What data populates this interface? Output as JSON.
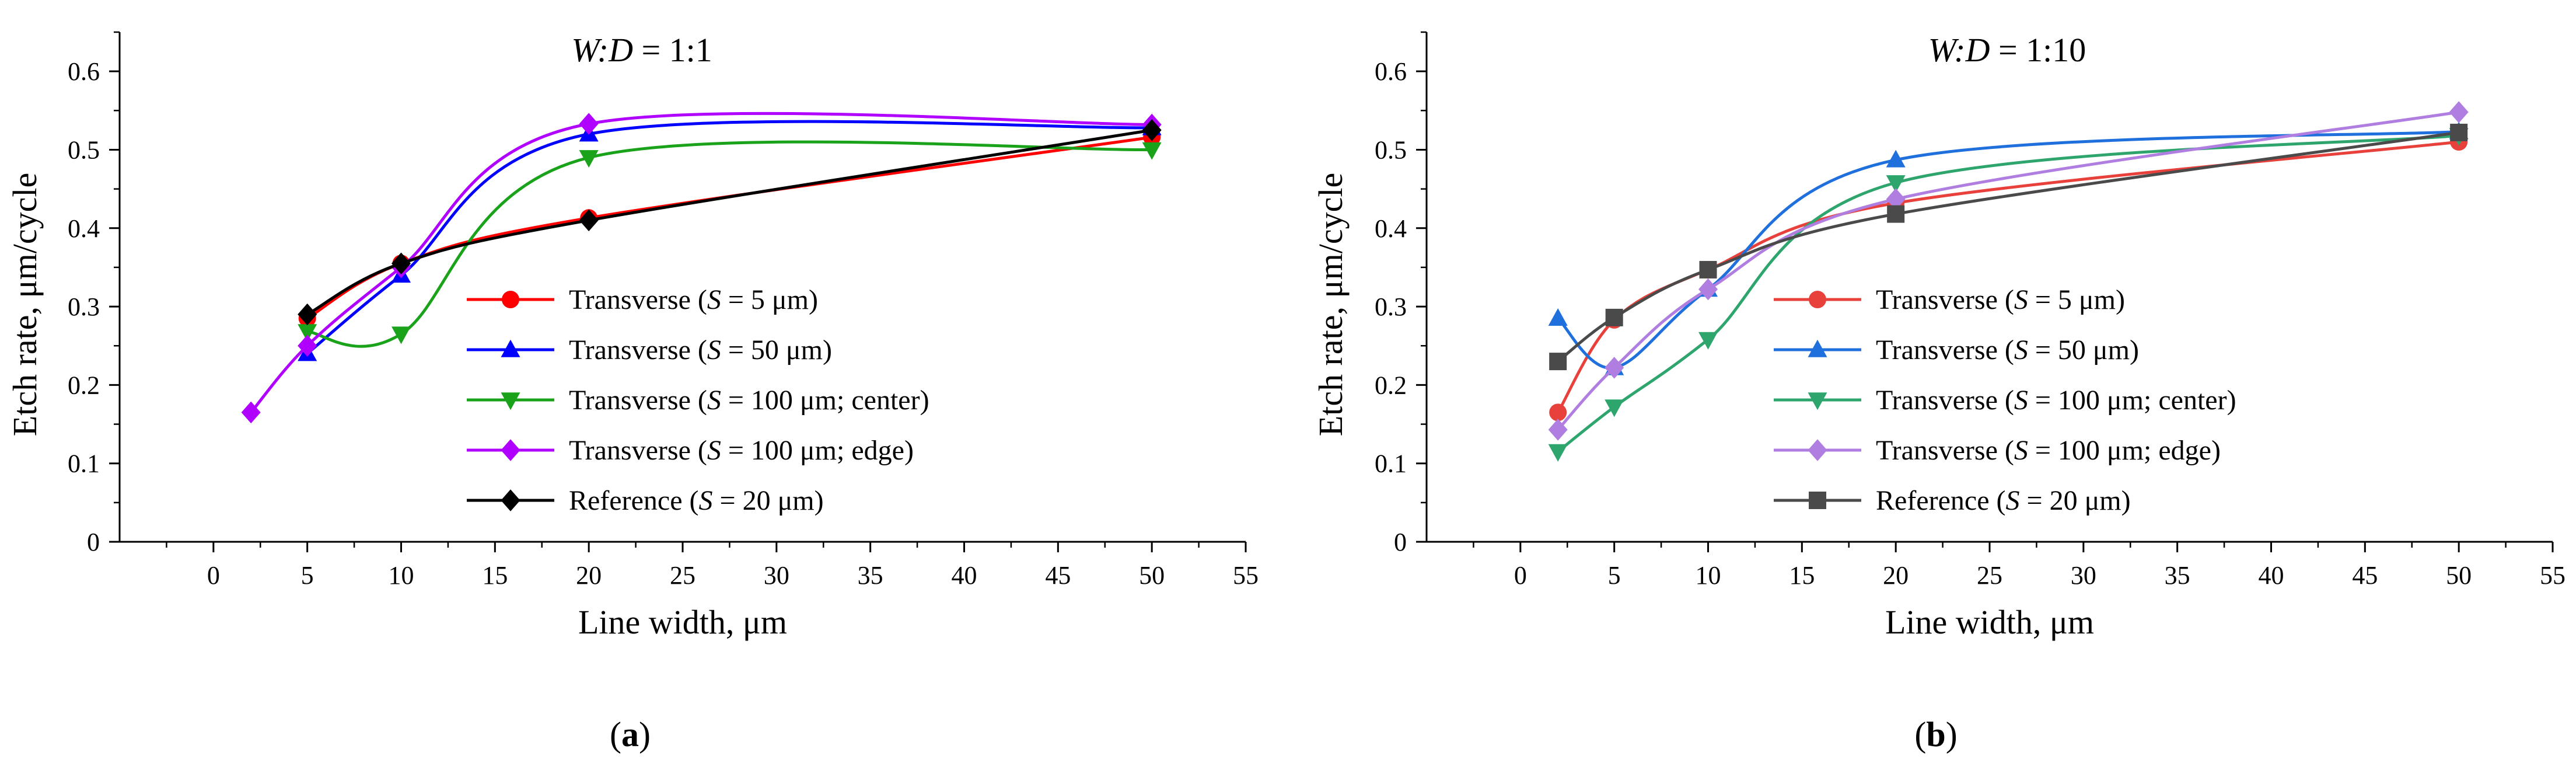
{
  "chart_data": [
    {
      "type": "line",
      "panel_label": "a",
      "title": "W:D = 1:1",
      "title_italic": "W:D",
      "title_rest": " = 1:1",
      "xlabel": "Line width, μm",
      "ylabel": "Etch rate, μm/cycle",
      "xlim": [
        -5,
        55
      ],
      "ylim": [
        0,
        0.65
      ],
      "xticks": [
        "0",
        "5",
        "10",
        "15",
        "20",
        "25",
        "30",
        "35",
        "40",
        "45",
        "50",
        "55"
      ],
      "yticks": [
        "0",
        "0.1",
        "0.2",
        "0.3",
        "0.4",
        "0.5",
        "0.6"
      ],
      "legend_position": "bottom-center",
      "series": [
        {
          "name": "Transverse (S = 5 μm)",
          "pre": "Transverse (",
          "s": "S",
          "post": " = 5 μm)",
          "color": "#ff0000",
          "marker": "circle",
          "x": [
            5,
            10,
            20,
            50
          ],
          "y": [
            0.285,
            0.355,
            0.413,
            0.516
          ]
        },
        {
          "name": "Transverse (S = 50 μm)",
          "pre": "Transverse (",
          "s": "S",
          "post": " = 50 μm)",
          "color": "#0000ff",
          "marker": "triangle-up",
          "x": [
            5,
            10,
            20,
            50
          ],
          "y": [
            0.24,
            0.34,
            0.52,
            0.528
          ]
        },
        {
          "name": "Transverse (S = 100 μm; center)",
          "pre": "Transverse (",
          "s": "S",
          "post": " = 100 μm; center)",
          "color": "#1aa31a",
          "marker": "triangle-down",
          "x": [
            5,
            10,
            20,
            50
          ],
          "y": [
            0.268,
            0.265,
            0.49,
            0.5
          ]
        },
        {
          "name": "Transverse (S = 100 μm; edge)",
          "pre": "Transverse (",
          "s": "S",
          "post": " = 100 μm; edge)",
          "color": "#b000ff",
          "marker": "diamond",
          "x": [
            2,
            5,
            10,
            20,
            50
          ],
          "y": [
            0.165,
            0.25,
            0.35,
            0.533,
            0.532
          ]
        },
        {
          "name": "Reference (S = 20 μm)",
          "pre": "Reference (",
          "s": "S",
          "post": " = 20 μm)",
          "color": "#000000",
          "marker": "diamond",
          "x": [
            5,
            10,
            20,
            50
          ],
          "y": [
            0.29,
            0.355,
            0.41,
            0.525
          ]
        }
      ]
    },
    {
      "type": "line",
      "panel_label": "b",
      "title": "W:D = 1:10",
      "title_italic": "W:D",
      "title_rest": " = 1:10",
      "xlabel": "Line width, μm",
      "ylabel": "Etch rate, μm/cycle",
      "xlim": [
        -5,
        55
      ],
      "ylim": [
        0,
        0.65
      ],
      "xticks": [
        "0",
        "5",
        "10",
        "15",
        "20",
        "25",
        "30",
        "35",
        "40",
        "45",
        "50",
        "55"
      ],
      "yticks": [
        "0",
        "0.1",
        "0.2",
        "0.3",
        "0.4",
        "0.5",
        "0.6"
      ],
      "legend_position": "bottom-center",
      "series": [
        {
          "name": "Transverse (S = 5 μm)",
          "pre": "Transverse (",
          "s": "S",
          "post": " = 5 μm)",
          "color": "#e8413c",
          "marker": "circle",
          "x": [
            2,
            5,
            10,
            20,
            50
          ],
          "y": [
            0.165,
            0.283,
            0.347,
            0.432,
            0.51
          ]
        },
        {
          "name": "Transverse (S = 50 μm)",
          "pre": "Transverse (",
          "s": "S",
          "post": " = 50 μm)",
          "color": "#1f6fdc",
          "marker": "triangle-up",
          "x": [
            2,
            5,
            10,
            20,
            50
          ],
          "y": [
            0.285,
            0.222,
            0.322,
            0.487,
            0.523
          ]
        },
        {
          "name": "Transverse (S = 100 μm; center)",
          "pre": "Transverse (",
          "s": "S",
          "post": " = 100 μm; center)",
          "color": "#2ea56d",
          "marker": "triangle-down",
          "x": [
            2,
            5,
            10,
            20,
            50
          ],
          "y": [
            0.115,
            0.172,
            0.258,
            0.458,
            0.518
          ]
        },
        {
          "name": "Transverse (S = 100 μm; edge)",
          "pre": "Transverse (",
          "s": "S",
          "post": " = 100 μm; edge)",
          "color": "#b07ee0",
          "marker": "diamond",
          "x": [
            2,
            5,
            10,
            20,
            50
          ],
          "y": [
            0.143,
            0.222,
            0.322,
            0.437,
            0.548
          ]
        },
        {
          "name": "Reference (S = 20 μm)",
          "pre": "Reference (",
          "s": "S",
          "post": " = 20 μm)",
          "color": "#4a4a4a",
          "marker": "square",
          "x": [
            2,
            5,
            10,
            20,
            50
          ],
          "y": [
            0.23,
            0.286,
            0.347,
            0.418,
            0.522
          ]
        }
      ]
    }
  ]
}
